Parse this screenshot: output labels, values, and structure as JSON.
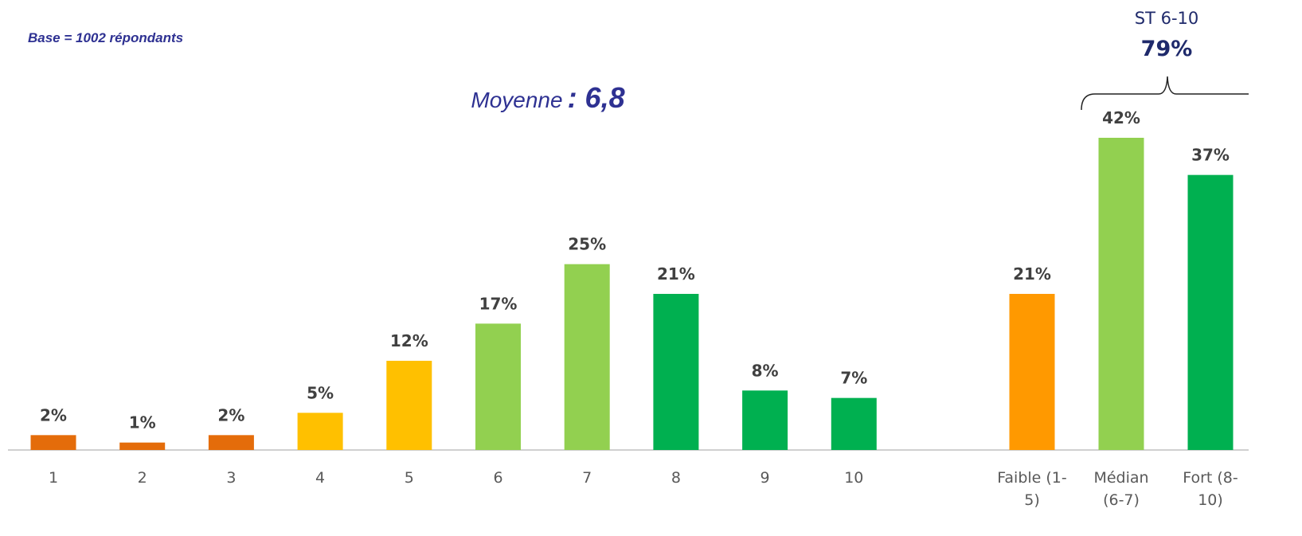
{
  "chart_data": {
    "type": "bar",
    "annotations": {
      "base": "Base = 1002 répondants",
      "mean_label": "Moyenne",
      "mean_value": ": 6,8",
      "subtotal_label": "ST 6-10",
      "subtotal_value": "79%"
    },
    "categories": [
      "1",
      "2",
      "3",
      "4",
      "5",
      "6",
      "7",
      "8",
      "9",
      "10",
      "Faible (1-5)",
      "Médian (6-7)",
      "Fort (8-10)"
    ],
    "values": [
      2,
      1,
      2,
      5,
      12,
      17,
      25,
      21,
      8,
      7,
      21,
      42,
      37
    ],
    "value_labels": [
      "2%",
      "1%",
      "2%",
      "5%",
      "12%",
      "17%",
      "25%",
      "21%",
      "8%",
      "7%",
      "21%",
      "42%",
      "37%"
    ],
    "colors": [
      "#e46c0a",
      "#e46c0a",
      "#e46c0a",
      "#ffc000",
      "#ffc000",
      "#92d050",
      "#92d050",
      "#00b050",
      "#00b050",
      "#00b050",
      "#ff9900",
      "#92d050",
      "#00b050"
    ]
  }
}
